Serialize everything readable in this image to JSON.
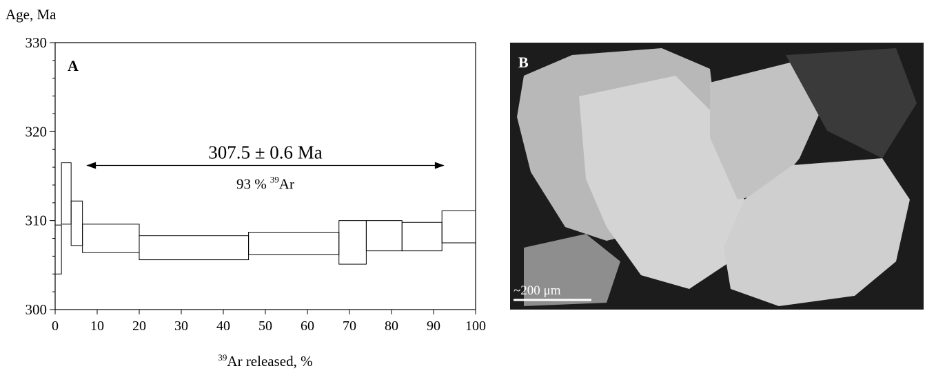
{
  "chart_data": {
    "type": "age-spectrum",
    "panel_label": "A",
    "y_label": "Age, Ma",
    "x_label": {
      "sup": "39",
      "text": "Ar released, %"
    },
    "xlim": [
      0,
      100
    ],
    "ylim": [
      300,
      330
    ],
    "xticks": [
      0,
      10,
      20,
      30,
      40,
      50,
      60,
      70,
      80,
      90,
      100
    ],
    "yticks": [
      300,
      310,
      320,
      330
    ],
    "y_minor_ticks": [
      302,
      304,
      306,
      308,
      312,
      314,
      316,
      318,
      322,
      324,
      326,
      328
    ],
    "color": "#000000",
    "steps": {
      "x0": [
        0,
        1.5,
        3.8,
        6.5,
        20,
        46,
        67.5,
        74,
        82.5,
        92
      ],
      "x1": [
        1.5,
        3.8,
        6.5,
        20,
        46,
        67.5,
        74,
        82.5,
        92,
        100
      ],
      "low": [
        304.0,
        309.6,
        307.2,
        306.4,
        305.6,
        306.2,
        305.1,
        306.6,
        306.6,
        307.5
      ],
      "high": [
        309.5,
        316.5,
        312.2,
        309.6,
        308.3,
        308.7,
        310.0,
        310.0,
        309.8,
        311.1
      ]
    },
    "plateau": {
      "age_label": "307.5 ± 0.6 Ma",
      "fraction_text": "93 %",
      "fraction_sup": "39",
      "fraction_rest": "Ar",
      "x_from": 7.4,
      "x_to": 92.6,
      "y": 316.2
    }
  },
  "image_panel": {
    "label": "B",
    "scale_bar": "~200 μm"
  }
}
